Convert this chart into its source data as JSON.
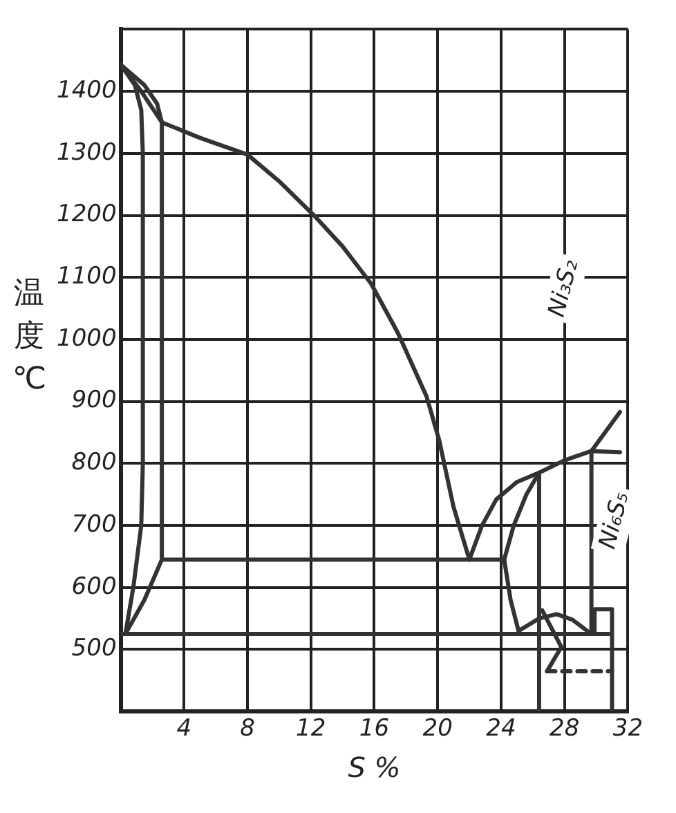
{
  "chart_data": {
    "type": "line",
    "xlabel": "S %",
    "ylabel": "温度 ℃",
    "xlim": [
      0,
      32
    ],
    "ylim": [
      400,
      1500
    ],
    "xticks": [
      {
        "value": 0,
        "label": null
      },
      4,
      8,
      12,
      16,
      20,
      24,
      28,
      32
    ],
    "yticks": [
      {
        "value": 400,
        "label": null
      },
      500,
      600,
      700,
      800,
      900,
      1000,
      1100,
      1200,
      1300,
      1400,
      {
        "value": 1500,
        "label": null
      }
    ],
    "grid": true,
    "legend": false,
    "marker": "none",
    "annotations": [
      "Ni₃S₂",
      "Ni₆S₅"
    ],
    "series": [
      {
        "color": "#333333",
        "line_style": "solid",
        "x": [
          0,
          1.3,
          2.6,
          5,
          8,
          10,
          12.2,
          14,
          15.8,
          17.5,
          19.3,
          20.1,
          21,
          22
        ],
        "values": [
          1443,
          1400,
          1350,
          1325,
          1298,
          1255,
          1200,
          1150,
          1090,
          1010,
          908,
          837,
          730,
          645
        ]
      },
      {
        "color": "#333333",
        "line_style": "solid",
        "x": [
          0,
          1.5,
          2.3,
          2.6,
          2.6,
          24.2,
          24.6,
          25.1,
          26.4,
          27.5,
          28.5,
          29.7,
          29.7,
          31.5
        ],
        "values": [
          1443,
          1410,
          1380,
          1350,
          645,
          645,
          580,
          530,
          550,
          557,
          548,
          525,
          820,
          818
        ]
      },
      {
        "color": "#333333",
        "line_style": "solid",
        "x": [
          0,
          0.9,
          1.3,
          1.4,
          1.4,
          1.3,
          0.8,
          0.3,
          1.5,
          2.6
        ],
        "values": [
          1443,
          1410,
          1370,
          1300,
          800,
          700,
          600,
          525,
          580,
          645
        ]
      },
      {
        "color": "#333333",
        "line_style": "solid",
        "x": [
          0,
          30.8
        ],
        "values": [
          525,
          525
        ]
      },
      {
        "color": "#333333",
        "line_style": "solid",
        "x": [
          22,
          22.8,
          23.7,
          25,
          26.4,
          28,
          29.7,
          31.5
        ],
        "values": [
          645,
          700,
          742,
          770,
          785,
          805,
          820,
          883
        ]
      },
      {
        "color": "#333333",
        "line_style": "solid",
        "x": [
          24.2,
          24.8,
          25.6,
          26.4,
          26.4
        ],
        "values": [
          645,
          700,
          750,
          785,
          400
        ]
      },
      {
        "color": "#333333",
        "line_style": "solid",
        "x": [
          26.6,
          27.8,
          26.9
        ],
        "values": [
          563,
          504,
          465
        ]
      },
      {
        "color": "#333333",
        "line_style": "dashed",
        "x": [
          26.9,
          31
        ],
        "values": [
          465,
          465
        ]
      },
      {
        "color": "#333333",
        "line_style": "solid",
        "x": [
          29.9,
          29.9,
          31,
          31
        ],
        "values": [
          525,
          565,
          565,
          400
        ]
      }
    ]
  }
}
